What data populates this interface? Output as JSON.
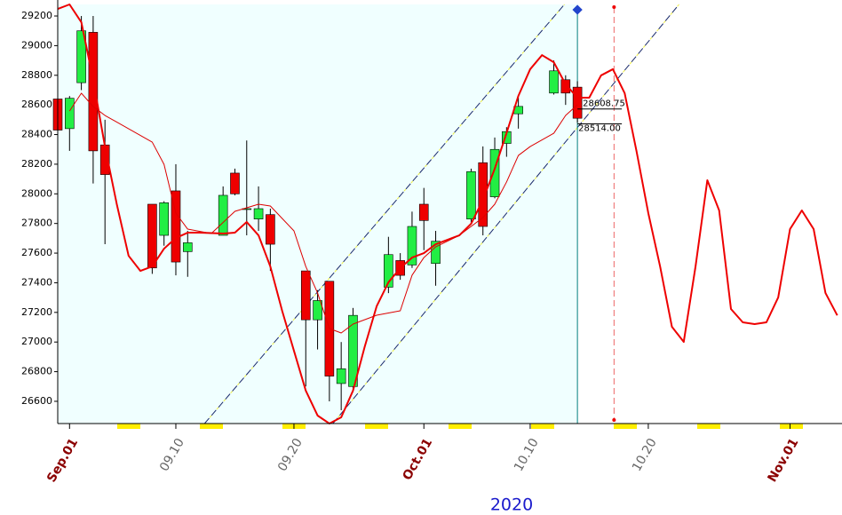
{
  "chart_data": {
    "type": "candlestick",
    "x_title": "2020",
    "xlim": [
      -1,
      65.4
    ],
    "ylim": [
      26450,
      29278
    ],
    "yticks": [
      26600,
      26800,
      27000,
      27200,
      27400,
      27600,
      27800,
      28000,
      28200,
      28400,
      28600,
      28800,
      29000,
      29200
    ],
    "xticks": [
      {
        "value": 0,
        "label": "Sep.01"
      },
      {
        "value": 9,
        "label": "09.10"
      },
      {
        "value": 19,
        "label": "09.20"
      },
      {
        "value": 30,
        "label": "Oct.01"
      },
      {
        "value": 39,
        "label": "10.10"
      },
      {
        "value": 49,
        "label": "10.20"
      },
      {
        "value": 61,
        "label": "Nov.01"
      }
    ],
    "candles": {
      "x": [
        -1,
        0,
        1,
        2,
        3,
        7,
        8,
        9,
        10,
        13,
        14,
        15,
        16,
        17,
        20,
        21,
        22,
        23,
        24,
        27,
        28,
        29,
        30,
        31,
        34,
        35,
        36,
        37,
        38,
        41,
        42,
        43
      ],
      "open": [
        28640,
        28440,
        28750,
        29090,
        28330,
        27930,
        27720,
        28020,
        27610,
        27720,
        28140,
        27900,
        27830,
        27860,
        27480,
        27150,
        27410,
        26720,
        26700,
        27370,
        27550,
        27520,
        27930,
        27530,
        27830,
        28210,
        27980,
        28340,
        28540,
        28680,
        28770,
        28720
      ],
      "high": [
        28640,
        28660,
        29200,
        29200,
        28500,
        27930,
        27950,
        28200,
        27750,
        28050,
        28170,
        28360,
        28050,
        27900,
        27480,
        27350,
        27410,
        27000,
        27230,
        27710,
        27600,
        27880,
        28040,
        27750,
        28170,
        28320,
        28380,
        28450,
        28650,
        28900,
        28800,
        28760
      ],
      "low": [
        28430,
        28290,
        28700,
        28070,
        27660,
        27460,
        27650,
        27450,
        27440,
        27720,
        27990,
        27720,
        27750,
        27480,
        26700,
        26950,
        26600,
        26540,
        26670,
        27330,
        27420,
        27500,
        27620,
        27380,
        27800,
        27720,
        27970,
        28250,
        28440,
        28670,
        28600,
        28480
      ],
      "close": [
        28430,
        28645,
        29100,
        28290,
        28130,
        27500,
        27940,
        27540,
        27670,
        27990,
        28000,
        27900,
        27900,
        27660,
        27150,
        27280,
        26770,
        26820,
        27180,
        27590,
        27450,
        27780,
        27820,
        27680,
        28150,
        27780,
        28300,
        28420,
        28590,
        28830,
        28680,
        28510
      ],
      "up_color": "#22ee44",
      "down_color": "#ee0000"
    },
    "series": [
      {
        "color": "#ee0000",
        "width": 2,
        "x": [
          -1,
          0,
          1,
          2,
          3,
          4,
          5,
          6,
          7,
          8,
          9,
          10,
          11,
          12,
          13,
          14,
          15,
          16,
          17,
          18,
          19,
          20,
          21,
          22,
          23,
          24,
          25,
          26,
          27,
          28,
          29,
          30,
          31,
          32,
          33,
          34,
          35,
          36,
          37,
          38,
          39,
          40,
          41,
          42,
          43,
          44,
          45,
          46,
          47,
          48,
          49,
          50,
          51,
          52,
          53,
          54,
          55,
          56,
          57,
          58,
          59,
          60,
          61,
          62,
          63,
          64,
          65
        ],
        "values": [
          29248,
          29278,
          29158,
          28769,
          28319,
          27930,
          27582,
          27480,
          27510,
          27630,
          27702,
          27738,
          27738,
          27735,
          27732,
          27738,
          27810,
          27720,
          27510,
          27211,
          26941,
          26672,
          26504,
          26450,
          26492,
          26672,
          26971,
          27241,
          27403,
          27499,
          27570,
          27600,
          27660,
          27690,
          27720,
          27798,
          27960,
          28170,
          28410,
          28661,
          28841,
          28936,
          28888,
          28739,
          28649,
          28649,
          28799,
          28841,
          28679,
          28289,
          27870,
          27510,
          27103,
          27001,
          27510,
          28092,
          27888,
          27223,
          27133,
          27121,
          27133,
          27301,
          27762,
          27888,
          27762,
          27331,
          27180
        ]
      },
      {
        "color": "#dd0000",
        "width": 1,
        "x": [
          0,
          1,
          2,
          3,
          7,
          8,
          9,
          10,
          12,
          14,
          16,
          17,
          19,
          20,
          21,
          22,
          23,
          24,
          26,
          28,
          29,
          30,
          31,
          33,
          34,
          35,
          36,
          37,
          38,
          39,
          41,
          42,
          43
        ],
        "values": [
          28559,
          28679,
          28589,
          28529,
          28349,
          28199,
          27870,
          27762,
          27732,
          27882,
          27930,
          27918,
          27750,
          27510,
          27331,
          27091,
          27061,
          27121,
          27181,
          27211,
          27451,
          27570,
          27642,
          27720,
          27780,
          27840,
          27930,
          28080,
          28259,
          28319,
          28409,
          28529,
          28601
        ]
      }
    ],
    "channel_lines": [
      {
        "x": [
          11.43,
          41.9
        ],
        "values": [
          26450,
          29278
        ]
      },
      {
        "x": [
          22.3,
          51.6
        ],
        "values": [
          26450,
          29278
        ]
      }
    ],
    "cursor_x": 43,
    "forecast_x": 46.1,
    "price_labels": [
      {
        "value": 28608.75,
        "label": "28608.75"
      },
      {
        "value": 28514,
        "label": "28514.00"
      }
    ]
  }
}
